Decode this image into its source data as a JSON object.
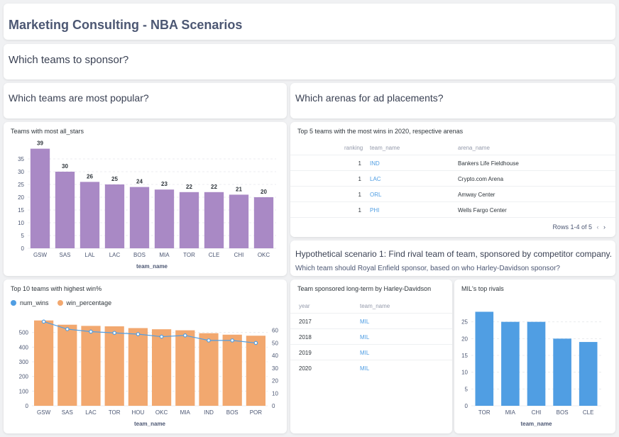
{
  "dashboard": {
    "title": "Marketing Consulting - NBA Scenarios",
    "question": "Which teams to sponsor?",
    "popular_heading": "Which teams are most popular?",
    "arenas_heading": "Which arenas for ad placements?",
    "scenario_heading": "Hypothetical scenario 1: Find rival team of team, sponsored by competitor company.",
    "scenario_sub": "Which team should Royal Enfield sponsor, based on who Harley-Davidson sponsor?"
  },
  "arenas_table": {
    "title": "Top 5 teams with the most wins in 2020, respective arenas",
    "columns": [
      "ranking",
      "team_name",
      "arena_name"
    ],
    "rows": [
      {
        "ranking": "1",
        "team_name": "IND",
        "arena_name": "Bankers Life Fieldhouse"
      },
      {
        "ranking": "1",
        "team_name": "LAC",
        "arena_name": "Crypto.com Arena"
      },
      {
        "ranking": "1",
        "team_name": "ORL",
        "arena_name": "Amway Center"
      },
      {
        "ranking": "1",
        "team_name": "PHI",
        "arena_name": "Wells Fargo Center"
      }
    ],
    "footer": "Rows 1-4 of 5",
    "prev_icon": "‹",
    "next_icon": "›"
  },
  "harley_table": {
    "title": "Team sponsored long-term by Harley-Davidson",
    "columns": [
      "year",
      "team_name"
    ],
    "rows": [
      {
        "year": "2017",
        "team_name": "MIL"
      },
      {
        "year": "2018",
        "team_name": "MIL"
      },
      {
        "year": "2019",
        "team_name": "MIL"
      },
      {
        "year": "2020",
        "team_name": "MIL"
      }
    ]
  },
  "colors": {
    "purple": "#a989c5",
    "orange": "#f2a86f",
    "blue": "#509ee3",
    "line": "#509ee3"
  },
  "chart_data": [
    {
      "id": "all_stars",
      "type": "bar",
      "title": "Teams with most all_stars",
      "xlabel": "team_name",
      "ylabel": "",
      "categories": [
        "GSW",
        "SAS",
        "LAL",
        "LAC",
        "BOS",
        "MIA",
        "TOR",
        "CLE",
        "CHI",
        "OKC"
      ],
      "values": [
        39,
        30,
        26,
        25,
        24,
        23,
        22,
        22,
        21,
        20
      ],
      "ylim": [
        0,
        40
      ],
      "yticks": [
        0,
        5,
        10,
        15,
        20,
        25,
        30,
        35
      ],
      "data_labels": true,
      "grid": true
    },
    {
      "id": "win_pct",
      "type": "bar",
      "title": "Top 10 teams with highest win%",
      "xlabel": "team_name",
      "categories": [
        "GSW",
        "SAS",
        "LAC",
        "TOR",
        "HOU",
        "OKC",
        "MIA",
        "IND",
        "BOS",
        "POR"
      ],
      "series": [
        {
          "name": "num_wins",
          "type": "line",
          "axis": "right",
          "values": [
            67,
            61,
            59,
            58,
            57,
            55,
            56,
            52,
            52,
            50
          ]
        },
        {
          "name": "win_percentage",
          "type": "bar",
          "axis": "left",
          "values": [
            582,
            553,
            545,
            542,
            530,
            522,
            515,
            495,
            485,
            478
          ]
        }
      ],
      "ylim_left": [
        0,
        600
      ],
      "yticks_left": [
        0,
        100,
        200,
        300,
        400,
        500
      ],
      "ylim_right": [
        0,
        70
      ],
      "yticks_right": [
        0,
        10,
        20,
        30,
        40,
        50,
        60
      ],
      "legend": "top-left",
      "grid": true
    },
    {
      "id": "rivals",
      "type": "bar",
      "title": "MIL's top rivals",
      "xlabel": "team_name",
      "categories": [
        "TOR",
        "MIA",
        "CHI",
        "BOS",
        "CLE"
      ],
      "values": [
        28,
        25,
        25,
        20,
        19
      ],
      "ylim": [
        0,
        30
      ],
      "yticks": [
        0,
        5,
        10,
        15,
        20,
        25
      ],
      "grid": true
    }
  ]
}
